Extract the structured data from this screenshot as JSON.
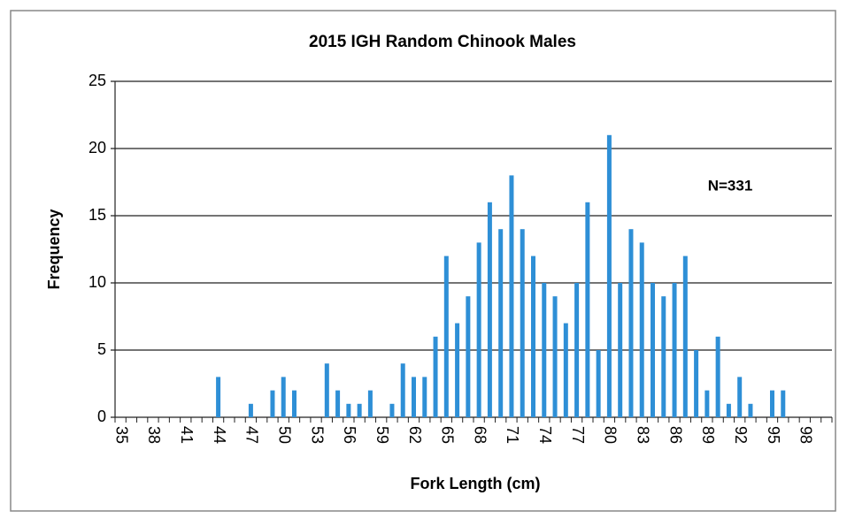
{
  "chart_data": {
    "type": "bar",
    "title": "2015 IGH Random Chinook Males",
    "x_label": "Fork Length (cm)",
    "y_label": "Frequency",
    "annotation": "N=331",
    "categories": [
      "35",
      null,
      null,
      "38",
      null,
      null,
      "41",
      null,
      null,
      "44",
      null,
      null,
      "47",
      null,
      null,
      "50",
      null,
      null,
      "53",
      null,
      null,
      "56",
      null,
      null,
      "59",
      null,
      null,
      "62",
      null,
      null,
      "65",
      null,
      null,
      "68",
      null,
      null,
      "71",
      null,
      null,
      "74",
      null,
      null,
      "77",
      null,
      null,
      "80",
      null,
      null,
      "83",
      null,
      null,
      "86",
      null,
      null,
      "89",
      null,
      null,
      "92",
      null,
      null,
      "95",
      null,
      null,
      "98",
      null,
      null
    ],
    "values": [
      0,
      0,
      0,
      0,
      0,
      0,
      0,
      0,
      0,
      3,
      0,
      0,
      1,
      0,
      2,
      3,
      2,
      0,
      0,
      4,
      2,
      1,
      1,
      2,
      0,
      1,
      4,
      3,
      3,
      6,
      12,
      7,
      9,
      13,
      16,
      14,
      18,
      14,
      12,
      10,
      9,
      7,
      10,
      16,
      5,
      21,
      10,
      14,
      13,
      10,
      9,
      10,
      12,
      5,
      2,
      6,
      1,
      3,
      1,
      0,
      2,
      2,
      0,
      0,
      0,
      0
    ],
    "color": "#2e8fd6",
    "ylim": [
      0,
      25
    ],
    "yticks": [
      0,
      5,
      10,
      15,
      20,
      25
    ],
    "grid": true
  }
}
